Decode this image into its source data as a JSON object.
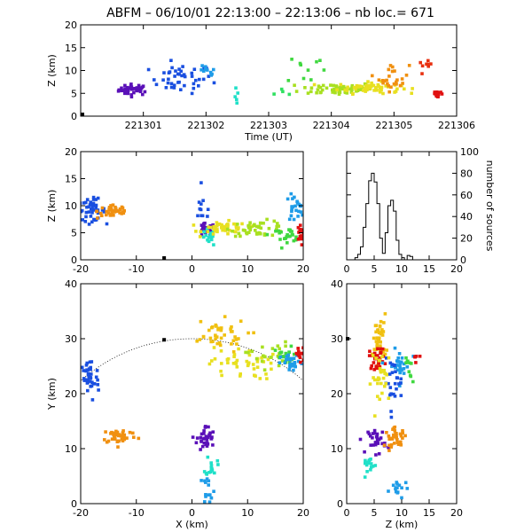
{
  "chart_data": [
    {
      "type": "scatter",
      "panel": "time-height",
      "title": "ABFM – 06/10/01 22:13:00 – 22:13:06 – nb loc.=     671",
      "xlabel": "Time (UT)",
      "ylabel": "Z (km)",
      "xlim": [
        221300,
        221306
      ],
      "ylim": [
        0,
        20
      ],
      "xticks": [
        "221301",
        "221302",
        "221303",
        "221304",
        "221305",
        "221306"
      ],
      "yticks": [
        "0",
        "5",
        "10",
        "15",
        "20"
      ],
      "clusters": [
        {
          "x": 221300.85,
          "y": 5.8,
          "sx": 0.12,
          "sy": 0.6,
          "n": 40,
          "color": "#5a10b8"
        },
        {
          "x": 221301.6,
          "y": 8.2,
          "sx": 0.25,
          "sy": 1.6,
          "n": 45,
          "color": "#1a4fe0"
        },
        {
          "x": 221302.0,
          "y": 9.5,
          "sx": 0.08,
          "sy": 0.8,
          "n": 10,
          "color": "#1e9ce8"
        },
        {
          "x": 221302.5,
          "y": 4.0,
          "sx": 0.02,
          "sy": 1.0,
          "n": 5,
          "color": "#20e0c8"
        },
        {
          "x": 221303.2,
          "y": 5.2,
          "sx": 0.1,
          "sy": 0.5,
          "n": 4,
          "color": "#30e060"
        },
        {
          "x": 221303.6,
          "y": 10.5,
          "sx": 0.15,
          "sy": 1.8,
          "n": 10,
          "color": "#40d840"
        },
        {
          "x": 221304.1,
          "y": 6.0,
          "sx": 0.3,
          "sy": 0.7,
          "n": 60,
          "color": "#a8e020"
        },
        {
          "x": 221304.6,
          "y": 6.2,
          "sx": 0.25,
          "sy": 0.6,
          "n": 60,
          "color": "#e8e020"
        },
        {
          "x": 221305.0,
          "y": 8.5,
          "sx": 0.12,
          "sy": 1.5,
          "n": 25,
          "color": "#f09010"
        },
        {
          "x": 221305.5,
          "y": 11.0,
          "sx": 0.05,
          "sy": 0.5,
          "n": 8,
          "color": "#e83010"
        },
        {
          "x": 221305.7,
          "y": 5.0,
          "sx": 0.05,
          "sy": 0.6,
          "n": 12,
          "color": "#e01010"
        }
      ]
    },
    {
      "type": "scatter",
      "panel": "x-height",
      "xlabel": "",
      "ylabel": "Z (km)",
      "xlim": [
        -20,
        20
      ],
      "ylim": [
        0,
        20
      ],
      "xticks": [
        "-20",
        "-10",
        "0",
        "10",
        "20"
      ],
      "yticks": [
        "0",
        "5",
        "10",
        "15",
        "20"
      ],
      "clusters": [
        {
          "x": -18,
          "y": 9.2,
          "sx": 1.2,
          "sy": 1.0,
          "n": 45,
          "color": "#1a4fe0"
        },
        {
          "x": -14,
          "y": 9.0,
          "sx": 1.5,
          "sy": 0.7,
          "n": 40,
          "color": "#f09010"
        },
        {
          "x": 2,
          "y": 9.0,
          "sx": 0.8,
          "sy": 1.6,
          "n": 12,
          "color": "#1a4fe0"
        },
        {
          "x": 2.5,
          "y": 5.5,
          "sx": 0.8,
          "sy": 0.6,
          "n": 25,
          "color": "#5a10b8"
        },
        {
          "x": 3,
          "y": 4.0,
          "sx": 0.6,
          "sy": 0.8,
          "n": 15,
          "color": "#20e0c8"
        },
        {
          "x": 6,
          "y": 5.8,
          "sx": 2.0,
          "sy": 0.6,
          "n": 50,
          "color": "#e8e020"
        },
        {
          "x": 12,
          "y": 5.8,
          "sx": 2.5,
          "sy": 0.7,
          "n": 45,
          "color": "#a8e020"
        },
        {
          "x": 17,
          "y": 4.6,
          "sx": 1.5,
          "sy": 0.6,
          "n": 25,
          "color": "#40d840"
        },
        {
          "x": 18.5,
          "y": 9.5,
          "sx": 0.8,
          "sy": 1.2,
          "n": 25,
          "color": "#1e9ce8"
        },
        {
          "x": 19.5,
          "y": 5.0,
          "sx": 0.4,
          "sy": 1.0,
          "n": 20,
          "color": "#e01010"
        }
      ]
    },
    {
      "type": "histogram",
      "panel": "height-histogram",
      "xlabel": "",
      "ylabel": "number of sources",
      "xlim": [
        0,
        20
      ],
      "ylim": [
        0,
        100
      ],
      "xticks": [
        "0",
        "5",
        "10",
        "15",
        "20"
      ],
      "yticks": [
        "0",
        "20",
        "40",
        "60",
        "80",
        "100"
      ],
      "bin_width": 0.5,
      "bins_start": 1.0,
      "counts": [
        0,
        2,
        5,
        12,
        30,
        52,
        73,
        80,
        72,
        52,
        20,
        6,
        25,
        50,
        55,
        45,
        18,
        5,
        2,
        0,
        4,
        3,
        0
      ]
    },
    {
      "type": "scatter",
      "panel": "plan-view",
      "xlabel": "X (km)",
      "ylabel": "Y (km)",
      "xlim": [
        -20,
        20
      ],
      "ylim": [
        0,
        40
      ],
      "xticks": [
        "-20",
        "-10",
        "0",
        "10",
        "20"
      ],
      "yticks": [
        "0",
        "10",
        "20",
        "30",
        "40"
      ],
      "range_circle": {
        "center": [
          0,
          0
        ],
        "radius": 30,
        "style": "dotted"
      },
      "stations": [
        {
          "x": -5,
          "y": 29.8
        }
      ],
      "clusters": [
        {
          "x": -18.5,
          "y": 22.5,
          "sx": 0.9,
          "sy": 2.0,
          "n": 45,
          "color": "#1a4fe0"
        },
        {
          "x": -13,
          "y": 12.3,
          "sx": 1.6,
          "sy": 0.7,
          "n": 40,
          "color": "#f09010"
        },
        {
          "x": 2.5,
          "y": 11.8,
          "sx": 0.8,
          "sy": 1.2,
          "n": 35,
          "color": "#5a10b8"
        },
        {
          "x": 3.5,
          "y": 7.0,
          "sx": 0.5,
          "sy": 1.0,
          "n": 15,
          "color": "#20e0c8"
        },
        {
          "x": 3.0,
          "y": 2.8,
          "sx": 0.5,
          "sy": 1.3,
          "n": 15,
          "color": "#1e9ce8"
        },
        {
          "x": 4,
          "y": 30.5,
          "sx": 3.0,
          "sy": 1.5,
          "n": 40,
          "color": "#f0c010"
        },
        {
          "x": 9,
          "y": 25.5,
          "sx": 3.0,
          "sy": 1.5,
          "n": 45,
          "color": "#e8e020"
        },
        {
          "x": 14,
          "y": 27,
          "sx": 2.0,
          "sy": 1.2,
          "n": 25,
          "color": "#a8e020"
        },
        {
          "x": 17,
          "y": 26.5,
          "sx": 1.0,
          "sy": 1.0,
          "n": 20,
          "color": "#40d840"
        },
        {
          "x": 18,
          "y": 25.5,
          "sx": 1.0,
          "sy": 0.8,
          "n": 25,
          "color": "#1e9ce8"
        },
        {
          "x": 19.5,
          "y": 27,
          "sx": 0.5,
          "sy": 0.8,
          "n": 15,
          "color": "#e01010"
        }
      ]
    },
    {
      "type": "scatter",
      "panel": "height-y",
      "xlabel": "Z (km)",
      "ylabel": "",
      "xlim": [
        0,
        20
      ],
      "ylim": [
        0,
        40
      ],
      "xticks": [
        "0",
        "5",
        "10",
        "15",
        "20"
      ],
      "yticks": [
        "0",
        "10",
        "20",
        "30",
        "40"
      ],
      "clusters": [
        {
          "x": 6,
          "y": 30,
          "sx": 0.6,
          "sy": 2.2,
          "n": 40,
          "color": "#f0c010"
        },
        {
          "x": 5.5,
          "y": 26.5,
          "sx": 0.7,
          "sy": 1.0,
          "n": 30,
          "color": "#e01010"
        },
        {
          "x": 9.5,
          "y": 25,
          "sx": 1.0,
          "sy": 1.5,
          "n": 30,
          "color": "#1e9ce8"
        },
        {
          "x": 8.5,
          "y": 22,
          "sx": 0.8,
          "sy": 2.0,
          "n": 25,
          "color": "#1a4fe0"
        },
        {
          "x": 6.5,
          "y": 23,
          "sx": 1.0,
          "sy": 2.5,
          "n": 30,
          "color": "#e8e020"
        },
        {
          "x": 11.5,
          "y": 24,
          "sx": 0.5,
          "sy": 1.2,
          "n": 10,
          "color": "#40d840"
        },
        {
          "x": 5.5,
          "y": 11.5,
          "sx": 0.8,
          "sy": 1.2,
          "n": 30,
          "color": "#5a10b8"
        },
        {
          "x": 9,
          "y": 12,
          "sx": 1.0,
          "sy": 0.8,
          "n": 35,
          "color": "#f09010"
        },
        {
          "x": 4,
          "y": 7,
          "sx": 0.6,
          "sy": 1.0,
          "n": 15,
          "color": "#20e0c8"
        },
        {
          "x": 9.5,
          "y": 2.5,
          "sx": 0.8,
          "sy": 1.0,
          "n": 15,
          "color": "#1e9ce8"
        },
        {
          "x": 12.5,
          "y": 27,
          "sx": 0.3,
          "sy": 0.6,
          "n": 5,
          "color": "#e01010"
        }
      ]
    }
  ]
}
